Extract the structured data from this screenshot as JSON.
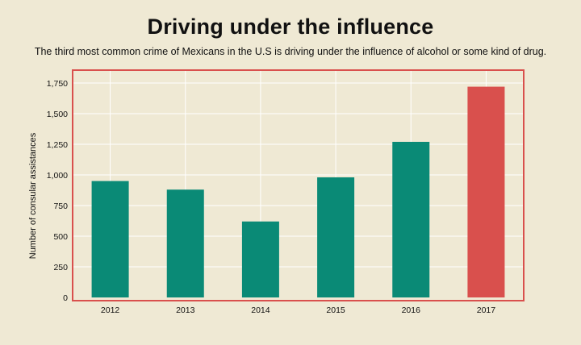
{
  "chart_data": {
    "type": "bar",
    "title": "Driving under the influence",
    "subtitle": "The third most common crime of Mexicans in the U.S is driving under the influence of alcohol or some kind of drug.",
    "xlabel": "",
    "ylabel": "Number of consular assistances",
    "categories": [
      "2012",
      "2013",
      "2014",
      "2015",
      "2016",
      "2017"
    ],
    "values": [
      950,
      880,
      620,
      980,
      1270,
      1720
    ],
    "ylim": [
      0,
      1750
    ],
    "yticks": [
      0,
      250,
      500,
      750,
      "1,000",
      "1,250",
      "1,500",
      "1,750"
    ],
    "grid": true,
    "legend": "none",
    "colors": {
      "bar": "#0a8a76",
      "highlight_bar": "#d9504d",
      "frame": "#d9504d",
      "grid": "#ffffff",
      "background": "#efe9d4"
    },
    "highlight_category": "2017"
  }
}
